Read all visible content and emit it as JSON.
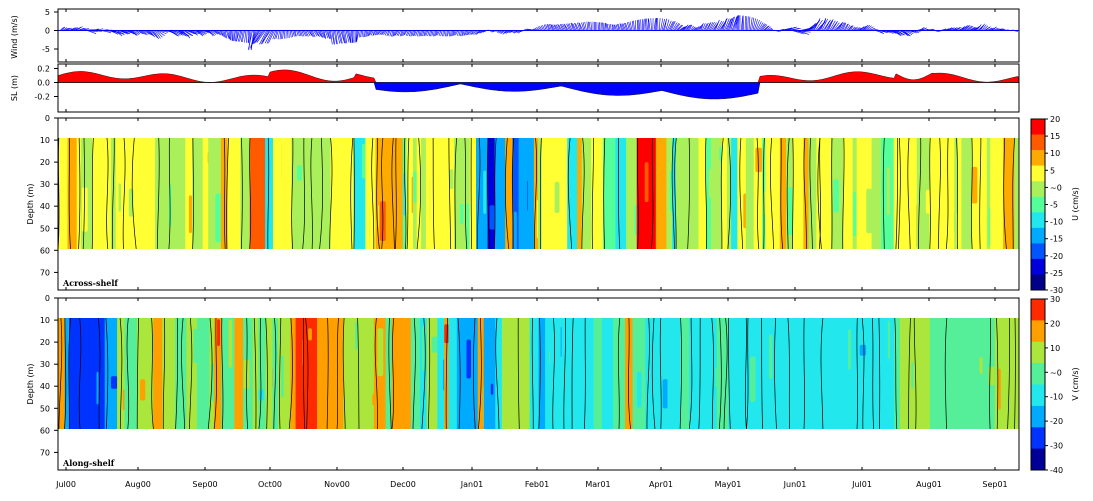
{
  "chart_data": [
    {
      "type": "line",
      "ylabel": "Wind (m/s)",
      "ylim": [
        -5,
        5
      ],
      "yticks": [
        "5",
        "0",
        "-5"
      ],
      "style": "stick-vectors"
    },
    {
      "type": "area",
      "ylabel": "SL (m)",
      "ylim": [
        -0.3,
        0.25
      ],
      "yticks": [
        "0.2",
        "0.0",
        "-0.2"
      ],
      "colors": {
        "positive": "#ff0000",
        "negative": "#0000ff"
      }
    },
    {
      "type": "heatmap",
      "panel_label": "Across-shelf",
      "ylabel": "Depth (m)",
      "ylim": [
        0,
        78
      ],
      "yticks": [
        "0",
        "10",
        "20",
        "30",
        "40",
        "50",
        "60",
        "70"
      ],
      "data_depth_range": [
        10,
        60
      ],
      "colorbar_label": "U (cm/s)",
      "colorbar_ticks": [
        "20",
        "15",
        "10",
        "5",
        "~0",
        "-5",
        "-10",
        "-15",
        "-20",
        "-25",
        "-30"
      ],
      "colorbar_colors": [
        "#ff0000",
        "#ff5a00",
        "#ffaa00",
        "#ffff33",
        "#aaf05a",
        "#55ff99",
        "#22e8ee",
        "#00aaff",
        "#0055ff",
        "#0000dd",
        "#000088"
      ]
    },
    {
      "type": "heatmap",
      "panel_label": "Along-shelf",
      "ylabel": "Depth (m)",
      "ylim": [
        0,
        78
      ],
      "yticks": [
        "0",
        "10",
        "20",
        "30",
        "40",
        "50",
        "60",
        "70"
      ],
      "data_depth_range": [
        10,
        60
      ],
      "colorbar_label": "V (cm/s)",
      "colorbar_ticks": [
        "30",
        "20",
        "10",
        "~0",
        "-10",
        "-20",
        "-30",
        "-40"
      ],
      "colorbar_colors": [
        "#ff2a00",
        "#ffa000",
        "#aae63c",
        "#55ee99",
        "#22e8ee",
        "#00aaff",
        "#0033ff",
        "#000099"
      ]
    }
  ],
  "xaxis": {
    "ticks": [
      "Jul00",
      "Aug00",
      "Sep00",
      "Oct00",
      "Nov00",
      "Dec00",
      "Jan01",
      "Feb01",
      "Mar01",
      "Apr01",
      "May01",
      "Jun01",
      "Jul01",
      "Aug01",
      "Sep01"
    ]
  }
}
